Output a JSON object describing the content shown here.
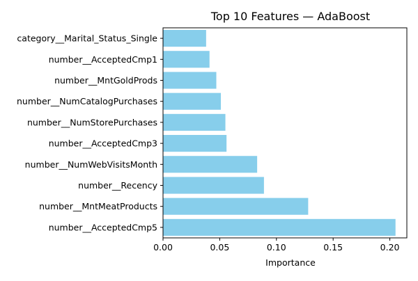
{
  "chart_data": {
    "type": "bar",
    "orientation": "horizontal",
    "title": "Top 10 Features — AdaBoost",
    "xlabel": "Importance",
    "ylabel": "",
    "categories": [
      "category__Marital_Status_Single",
      "number__AcceptedCmp1",
      "number__MntGoldProds",
      "number__NumCatalogPurchases",
      "number__NumStorePurchases",
      "number__AcceptedCmp3",
      "number__NumWebVisitsMonth",
      "number__Recency",
      "number__MntMeatProducts",
      "number__AcceptedCmp5"
    ],
    "values": [
      0.038,
      0.041,
      0.047,
      0.051,
      0.055,
      0.056,
      0.083,
      0.089,
      0.128,
      0.205
    ],
    "xlim": [
      0,
      0.215
    ],
    "xticks": [
      0.0,
      0.05,
      0.1,
      0.15,
      0.2
    ],
    "xtick_labels": [
      "0.00",
      "0.05",
      "0.10",
      "0.15",
      "0.20"
    ],
    "bar_color": "#87ceeb",
    "grid": false,
    "legend": "none"
  }
}
